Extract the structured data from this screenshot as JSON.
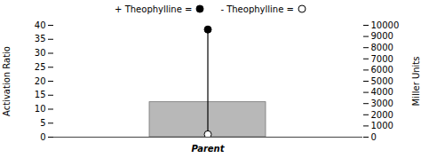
{
  "chart_data": {
    "type": "bar",
    "categories": [
      "Parent"
    ],
    "values": [
      12.5
    ],
    "color": "#b8b8b8",
    "ylabel": "Activation Ratio",
    "y2label": "Miller Units",
    "ylim": [
      0,
      40
    ],
    "yticks": [
      0,
      5,
      10,
      15,
      20,
      25,
      30,
      35,
      40
    ],
    "y2lim": [
      0,
      10000
    ],
    "y2ticks": [
      0,
      1000,
      2000,
      3000,
      4000,
      5000,
      6000,
      7000,
      8000,
      9000,
      10000
    ],
    "grid": false,
    "legend": "top",
    "series": [
      {
        "name": "+ Theophylline =",
        "type": "scatter",
        "marker": "circle",
        "color": "#000000",
        "values": [
          38.5
        ]
      },
      {
        "name": "- Theophylline =",
        "type": "scatter",
        "marker": "circle",
        "color": "#ffffff",
        "values": [
          1.0
        ]
      }
    ]
  }
}
